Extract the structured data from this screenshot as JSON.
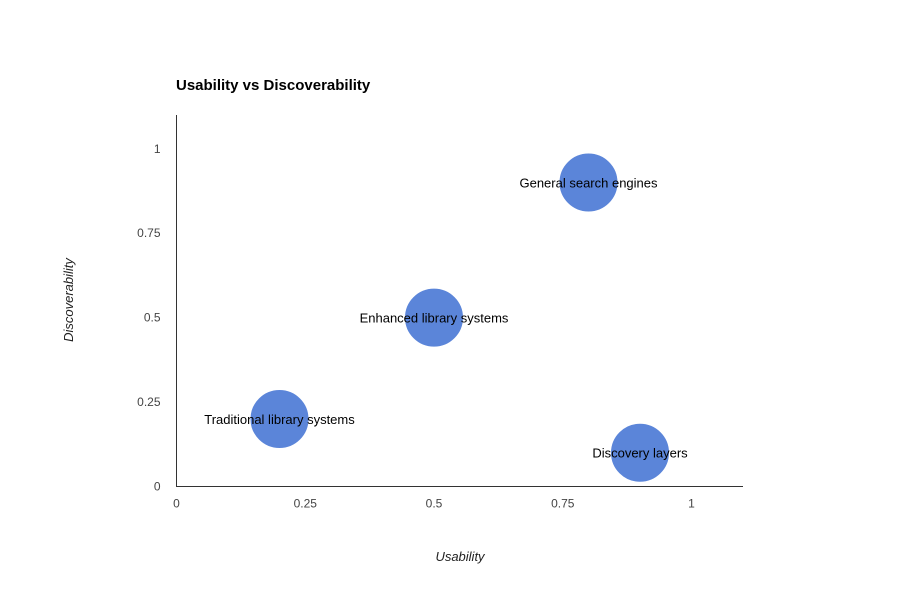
{
  "chart_data": {
    "type": "scatter",
    "title": "Usability vs Discoverability",
    "xlabel": "Usability",
    "ylabel": "Discoverability",
    "xlim": [
      0,
      1.1
    ],
    "ylim": [
      0,
      1.1
    ],
    "x_ticks": [
      0,
      0.25,
      0.5,
      0.75,
      1
    ],
    "y_ticks": [
      0,
      0.25,
      0.5,
      0.75,
      1
    ],
    "x_tick_labels": [
      "0",
      "0.25",
      "0.5",
      "0.75",
      "1"
    ],
    "y_tick_labels": [
      "0",
      "0.25",
      "0.5",
      "0.75",
      "1"
    ],
    "grid": false,
    "bubble_color": "#5b85d9",
    "points": [
      {
        "label": "General search engines",
        "x": 0.8,
        "y": 0.9
      },
      {
        "label": "Enhanced library systems",
        "x": 0.5,
        "y": 0.5
      },
      {
        "label": "Traditional library systems",
        "x": 0.2,
        "y": 0.2
      },
      {
        "label": "Discovery layers",
        "x": 0.9,
        "y": 0.1
      }
    ]
  }
}
